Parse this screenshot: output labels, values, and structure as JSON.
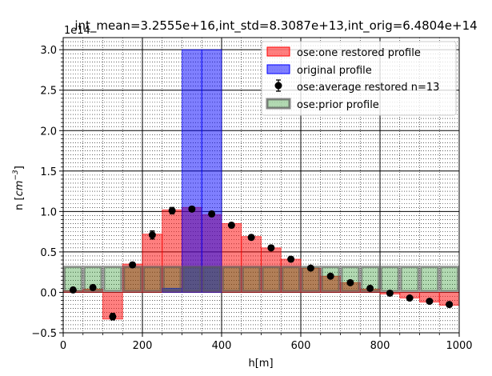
{
  "chart_data": {
    "type": "bar",
    "title": "int_mean=3.2555e+16,int_std=8.3087e+13,int_orig=6.4804e+14",
    "xlabel": "h[m]",
    "ylabel": "n [cm⁻³]",
    "ylabel_main": "n [",
    "ylabel_cm": "cm",
    "ylabel_exp": "−3",
    "ylabel_close": "]",
    "y_offset_text": "1e14",
    "y_scale": 100000000000000.0,
    "xlim": [
      0,
      1000
    ],
    "ylim": [
      -0.5,
      3.15
    ],
    "xticks": [
      0,
      200,
      400,
      600,
      800,
      1000
    ],
    "xtick_labels": [
      "0",
      "200",
      "400",
      "600",
      "800",
      "1000"
    ],
    "yticks": [
      -0.5,
      0.0,
      0.5,
      1.0,
      1.5,
      2.0,
      2.5,
      3.0
    ],
    "ytick_labels": [
      "−0.5",
      "0.0",
      "0.5",
      "1.0",
      "1.5",
      "2.0",
      "2.5",
      "3.0"
    ],
    "grid": true,
    "legend_position": "top-right",
    "bin_edges": [
      0,
      50,
      100,
      150,
      200,
      250,
      300,
      350,
      400,
      450,
      500,
      550,
      600,
      650,
      700,
      750,
      800,
      850,
      900,
      950,
      1000
    ],
    "series": [
      {
        "name": "ose:one restored profile",
        "kind": "bar",
        "color": "#ff0000",
        "values": [
          0.02,
          0.04,
          -0.33,
          0.35,
          0.72,
          1.02,
          1.05,
          0.96,
          0.85,
          0.69,
          0.55,
          0.41,
          0.3,
          0.2,
          0.12,
          0.04,
          -0.02,
          -0.07,
          -0.12,
          -0.16
        ]
      },
      {
        "name": "original profile",
        "kind": "bar",
        "color": "#0000ff",
        "values": [
          0,
          0,
          0,
          0,
          0,
          0.05,
          3.0,
          3.0,
          0,
          0,
          0,
          0,
          0,
          0,
          0,
          0,
          0,
          0,
          0,
          0
        ]
      },
      {
        "name": "ose:average restored n=13",
        "kind": "errorbar",
        "color": "#000000",
        "x": [
          25,
          75,
          125,
          175,
          225,
          275,
          325,
          375,
          425,
          475,
          525,
          575,
          625,
          675,
          725,
          775,
          825,
          875,
          925,
          975
        ],
        "values": [
          0.03,
          0.06,
          -0.3,
          0.34,
          0.71,
          1.01,
          1.03,
          0.97,
          0.83,
          0.68,
          0.55,
          0.41,
          0.3,
          0.2,
          0.12,
          0.05,
          -0.01,
          -0.07,
          -0.11,
          -0.15
        ],
        "errors": [
          0.02,
          0.02,
          0.04,
          0.03,
          0.05,
          0.04,
          0.03,
          0.03,
          0.03,
          0.03,
          0.03,
          0.03,
          0.02,
          0.02,
          0.02,
          0.02,
          0.02,
          0.02,
          0.02,
          0.03
        ]
      },
      {
        "name": "ose:prior profile",
        "kind": "bar",
        "color": "#008000",
        "values": [
          0.33,
          0.33,
          0.33,
          0.33,
          0.33,
          0.33,
          0.33,
          0.33,
          0.33,
          0.33,
          0.33,
          0.33,
          0.33,
          0.33,
          0.33,
          0.33,
          0.33,
          0.33,
          0.33,
          0.33
        ]
      }
    ]
  }
}
